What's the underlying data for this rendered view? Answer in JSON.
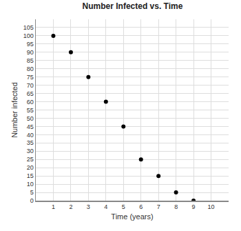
{
  "chart_data": {
    "type": "scatter",
    "title": "Number Infected vs. Time",
    "x_label": "Time (years)",
    "y_label": "Number infected",
    "x": [
      1,
      2,
      3,
      4,
      5,
      6,
      7,
      8,
      9
    ],
    "values": [
      100,
      90,
      75,
      60,
      45,
      25,
      15,
      5,
      0
    ],
    "color": "#000000",
    "marker": "circle",
    "xlim": [
      0,
      11
    ],
    "xticks": [
      1,
      2,
      3,
      4,
      5,
      6,
      7,
      8,
      9,
      10
    ],
    "ylim": [
      0,
      110
    ],
    "yticks": [
      0,
      5,
      10,
      15,
      20,
      25,
      30,
      35,
      40,
      45,
      50,
      55,
      60,
      65,
      70,
      75,
      80,
      85,
      90,
      95,
      100,
      105
    ],
    "grid": true
  }
}
